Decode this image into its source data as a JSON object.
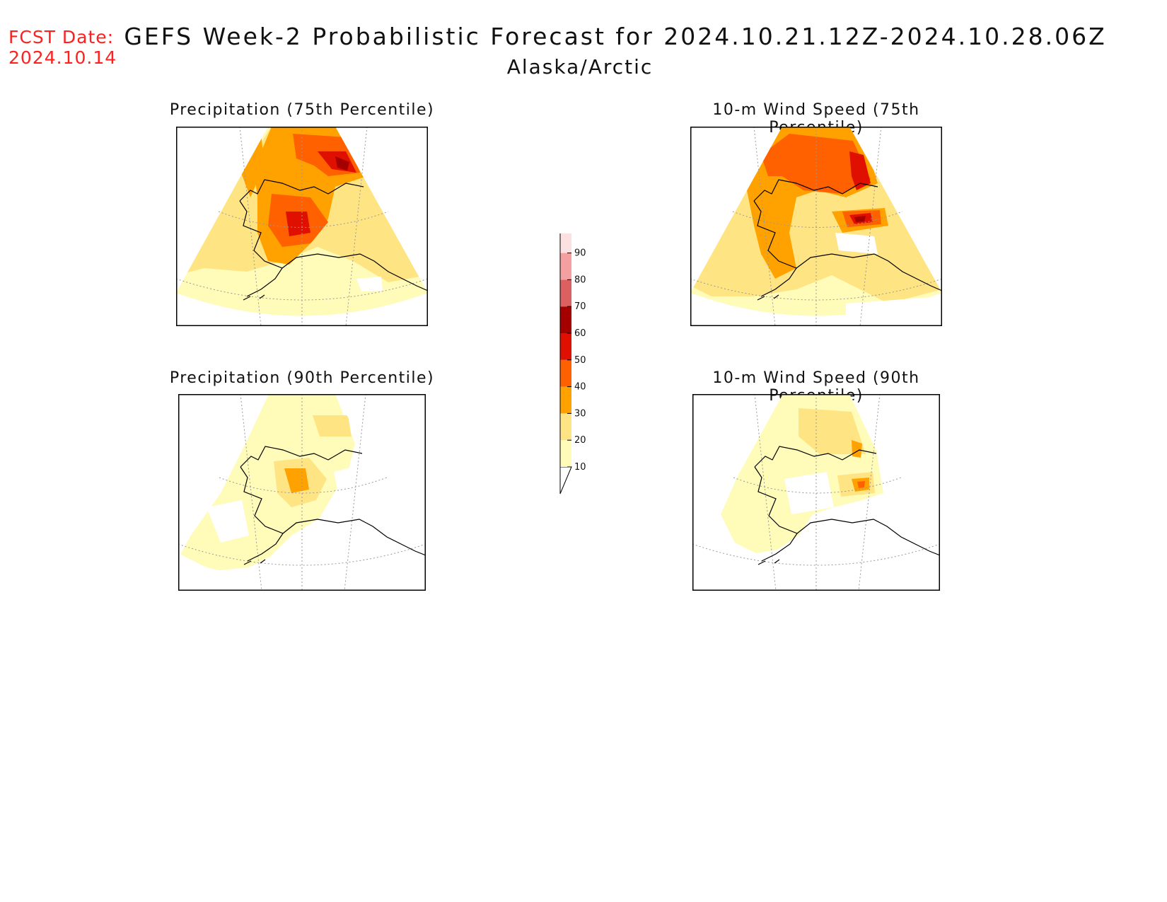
{
  "fcst_date": {
    "label": "FCST Date:",
    "value": "2024.10.14"
  },
  "title": "GEFS Week-2 Probabilistic Forecast for 2024.10.21.12Z-2024.10.28.06Z",
  "region": "Alaska/Arctic",
  "panels": [
    {
      "id": "precip75",
      "title": "Precipitation (75th Percentile)"
    },
    {
      "id": "wind75",
      "title": "10-m Wind Speed (75th Percentile)"
    },
    {
      "id": "precip90",
      "title": "Precipitation (90th Percentile)"
    },
    {
      "id": "wind90",
      "title": "10-m Wind Speed (90th Percentile)"
    }
  ],
  "colorbar": {
    "levels": [
      "10",
      "20",
      "30",
      "40",
      "50",
      "60",
      "70",
      "80",
      "90"
    ],
    "colors": [
      "#fffbb8",
      "#ffe483",
      "#ffa200",
      "#ff6000",
      "#e01000",
      "#a50000",
      "#dc6060",
      "#f4a0a0",
      "#fde0e0"
    ]
  }
}
